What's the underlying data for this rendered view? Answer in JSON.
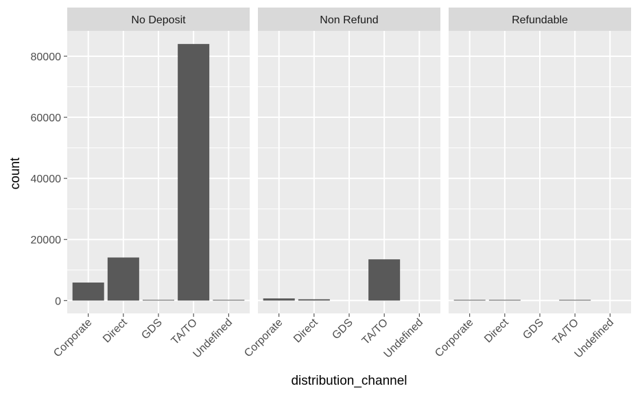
{
  "chart_data": {
    "type": "bar",
    "facet_by": "deposit_type",
    "panels": [
      {
        "title": "No Deposit",
        "categories": [
          "Corporate",
          "Direct",
          "GDS",
          "TA/TO",
          "Undefined"
        ],
        "values": [
          5900,
          14100,
          190,
          84000,
          1
        ]
      },
      {
        "title": "Non Refund",
        "categories": [
          "Corporate",
          "Direct",
          "GDS",
          "TA/TO",
          "Undefined"
        ],
        "values": [
          700,
          420,
          0,
          13500,
          0
        ]
      },
      {
        "title": "Refundable",
        "categories": [
          "Corporate",
          "Direct",
          "GDS",
          "TA/TO",
          "Undefined"
        ],
        "values": [
          40,
          80,
          0,
          40,
          0
        ]
      }
    ],
    "ylim": [
      -4200,
      88300
    ],
    "yticks": [
      0,
      20000,
      40000,
      60000,
      80000
    ],
    "ytick_labels": [
      "0",
      "20000",
      "40000",
      "60000",
      "80000"
    ],
    "xlabel": "distribution_channel",
    "ylabel": "count",
    "grid": true,
    "legend": "none",
    "colors": {
      "bar": "#595959",
      "panel_background": "#ebebeb",
      "strip_background": "#d9d9d9",
      "grid": "#ffffff",
      "text": "#4d4d4d",
      "title_text": "#1a1a1a"
    }
  }
}
